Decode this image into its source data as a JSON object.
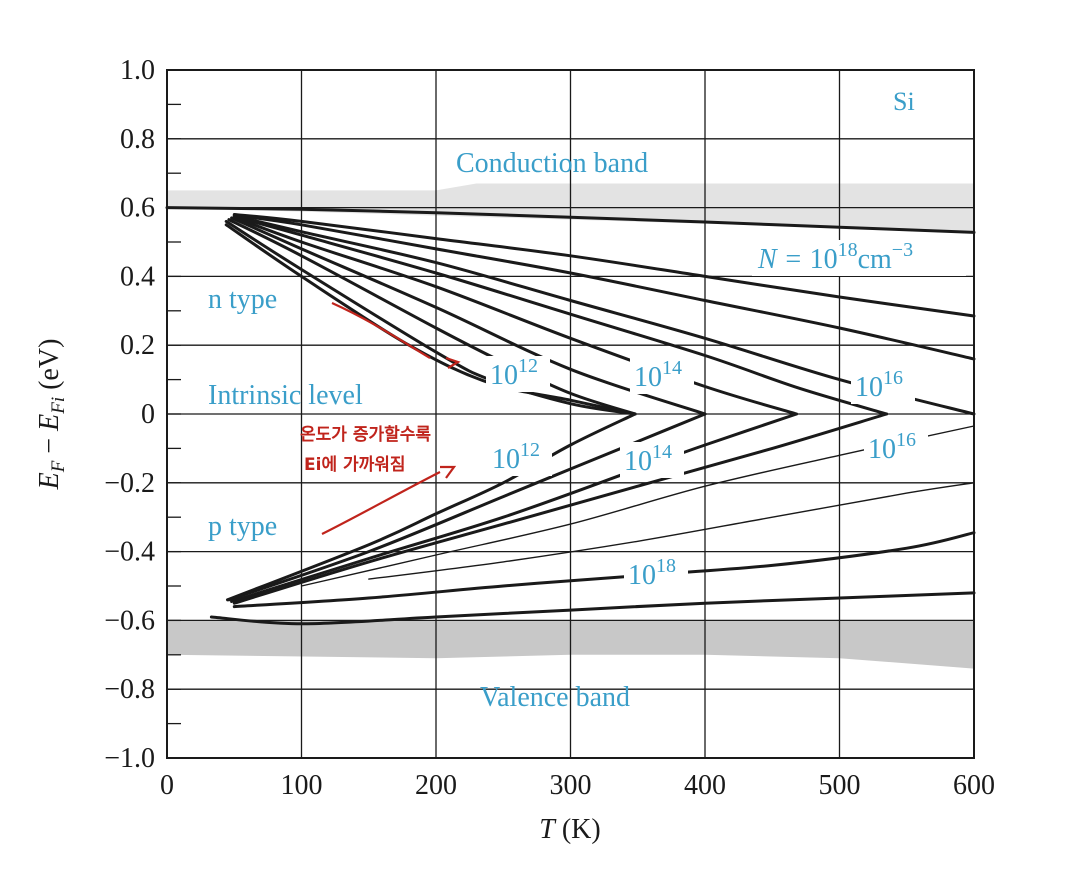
{
  "chart_data": {
    "type": "line",
    "title": "",
    "xlabel": "T (K)",
    "ylabel": "E_F − E_Fi (eV)",
    "xlim": [
      0,
      600
    ],
    "ylim": [
      -1.0,
      1.0
    ],
    "x_ticks": [
      "0",
      "100",
      "200",
      "300",
      "400",
      "500",
      "600"
    ],
    "y_ticks": [
      "1.0",
      "0.8",
      "0.6",
      "0.4",
      "0.2",
      "0",
      "−0.2",
      "−0.4",
      "−0.6",
      "−0.8",
      "−1.0"
    ],
    "grid": true,
    "material": "Si",
    "region_labels": {
      "conduction": "Conduction band",
      "valence": "Valence band",
      "n_type": "n type",
      "p_type": "p type",
      "intrinsic": "Intrinsic level"
    },
    "conduction_band": {
      "top": [
        [
          0,
          0.65
        ],
        [
          200,
          0.65
        ],
        [
          230,
          0.67
        ],
        [
          400,
          0.67
        ],
        [
          600,
          0.67
        ]
      ],
      "bottom": [
        [
          0,
          0.6
        ],
        [
          600,
          0.53
        ]
      ]
    },
    "valence_band": {
      "top": [
        [
          0,
          -0.6
        ],
        [
          600,
          -0.6
        ]
      ],
      "bottom": [
        [
          0,
          -0.7
        ],
        [
          200,
          -0.71
        ],
        [
          300,
          -0.7
        ],
        [
          400,
          -0.7
        ],
        [
          500,
          -0.71
        ],
        [
          600,
          -0.74
        ]
      ]
    },
    "curve_labels": {
      "n_top": "N = 10^18 cm^-3",
      "n12": "10^12",
      "n14": "10^14",
      "n16": "10^16",
      "p12": "10^12",
      "p14": "10^14",
      "p16": "10^16",
      "p18": "10^18"
    },
    "series": [
      {
        "name": "n 10^18",
        "type": "n",
        "points": [
          [
            0,
            0.6
          ],
          [
            100,
            0.595
          ],
          [
            200,
            0.585
          ],
          [
            300,
            0.572
          ],
          [
            400,
            0.558
          ],
          [
            500,
            0.543
          ],
          [
            600,
            0.528
          ]
        ]
      },
      {
        "name": "n 10^17",
        "type": "n",
        "points": [
          [
            50,
            0.58
          ],
          [
            100,
            0.56
          ],
          [
            200,
            0.51
          ],
          [
            300,
            0.46
          ],
          [
            400,
            0.4
          ],
          [
            500,
            0.34
          ],
          [
            600,
            0.285
          ]
        ]
      },
      {
        "name": "n 10^16",
        "type": "n",
        "points": [
          [
            50,
            0.578
          ],
          [
            100,
            0.55
          ],
          [
            200,
            0.48
          ],
          [
            300,
            0.41
          ],
          [
            400,
            0.33
          ],
          [
            500,
            0.25
          ],
          [
            600,
            0.16
          ]
        ]
      },
      {
        "name": "n 10^15.5",
        "type": "n",
        "points": [
          [
            50,
            0.576
          ],
          [
            100,
            0.53
          ],
          [
            200,
            0.44
          ],
          [
            300,
            0.33
          ],
          [
            400,
            0.22
          ],
          [
            500,
            0.1
          ],
          [
            600,
            0.0
          ]
        ]
      },
      {
        "name": "n 10^15",
        "type": "n",
        "points": [
          [
            50,
            0.574
          ],
          [
            100,
            0.52
          ],
          [
            200,
            0.41
          ],
          [
            300,
            0.29
          ],
          [
            400,
            0.17
          ],
          [
            470,
            0.075
          ],
          [
            535,
            0.0
          ]
        ]
      },
      {
        "name": "n 10^14.5",
        "type": "n",
        "points": [
          [
            50,
            0.572
          ],
          [
            100,
            0.5
          ],
          [
            200,
            0.37
          ],
          [
            300,
            0.22
          ],
          [
            400,
            0.08
          ],
          [
            468,
            0.0
          ]
        ]
      },
      {
        "name": "n 10^14",
        "type": "n",
        "points": [
          [
            48,
            0.57
          ],
          [
            100,
            0.48
          ],
          [
            200,
            0.31
          ],
          [
            300,
            0.13
          ],
          [
            400,
            0.0
          ]
        ]
      },
      {
        "name": "n 10^13",
        "type": "n",
        "points": [
          [
            46,
            0.565
          ],
          [
            100,
            0.46
          ],
          [
            200,
            0.25
          ],
          [
            250,
            0.15
          ],
          [
            300,
            0.06
          ],
          [
            348,
            0.0
          ]
        ]
      },
      {
        "name": "n 10^12",
        "type": "n",
        "points": [
          [
            44,
            0.56
          ],
          [
            100,
            0.42
          ],
          [
            200,
            0.18
          ],
          [
            240,
            0.1
          ],
          [
            300,
            0.03
          ],
          [
            348,
            0.0
          ]
        ]
      },
      {
        "name": "n 10^11",
        "type": "n",
        "points": [
          [
            44,
            0.55
          ],
          [
            100,
            0.4
          ],
          [
            180,
            0.2
          ],
          [
            240,
            0.09
          ],
          [
            300,
            0.04
          ],
          [
            348,
            0.0
          ]
        ]
      },
      {
        "name": "p 10^12",
        "type": "p",
        "points": [
          [
            45,
            -0.54
          ],
          [
            150,
            -0.38
          ],
          [
            200,
            -0.29
          ],
          [
            250,
            -0.2
          ],
          [
            300,
            -0.09
          ],
          [
            348,
            0.0
          ]
        ]
      },
      {
        "name": "p 10^13",
        "type": "p",
        "points": [
          [
            46,
            -0.54
          ],
          [
            150,
            -0.4
          ],
          [
            250,
            -0.24
          ],
          [
            300,
            -0.16
          ],
          [
            350,
            -0.08
          ],
          [
            400,
            0.0
          ]
        ]
      },
      {
        "name": "p 10^14",
        "type": "p",
        "points": [
          [
            48,
            -0.545
          ],
          [
            150,
            -0.42
          ],
          [
            250,
            -0.3
          ],
          [
            350,
            -0.16
          ],
          [
            400,
            -0.09
          ],
          [
            468,
            0.0
          ]
        ]
      },
      {
        "name": "p 10^15",
        "type": "p",
        "points": [
          [
            50,
            -0.55
          ],
          [
            150,
            -0.43
          ],
          [
            250,
            -0.32
          ],
          [
            350,
            -0.21
          ],
          [
            450,
            -0.1
          ],
          [
            535,
            0.0
          ]
        ]
      },
      {
        "name": "p 10^16",
        "type": "p",
        "points": [
          [
            100,
            -0.5
          ],
          [
            200,
            -0.41
          ],
          [
            300,
            -0.32
          ],
          [
            400,
            -0.21
          ],
          [
            500,
            -0.12
          ],
          [
            600,
            -0.035
          ]
        ]
      },
      {
        "name": "p 10^17",
        "type": "p",
        "points": [
          [
            150,
            -0.48
          ],
          [
            250,
            -0.43
          ],
          [
            350,
            -0.37
          ],
          [
            450,
            -0.3
          ],
          [
            550,
            -0.23
          ],
          [
            600,
            -0.2
          ]
        ]
      },
      {
        "name": "p 10^18",
        "type": "p",
        "points": [
          [
            50,
            -0.56
          ],
          [
            150,
            -0.535
          ],
          [
            250,
            -0.5
          ],
          [
            350,
            -0.47
          ],
          [
            450,
            -0.44
          ],
          [
            550,
            -0.39
          ],
          [
            600,
            -0.345
          ]
        ]
      },
      {
        "name": "p 10^19",
        "type": "p",
        "points": [
          [
            33,
            -0.59
          ],
          [
            100,
            -0.61
          ],
          [
            200,
            -0.59
          ],
          [
            300,
            -0.57
          ],
          [
            400,
            -0.55
          ],
          [
            500,
            -0.535
          ],
          [
            600,
            -0.52
          ]
        ]
      }
    ],
    "annotation": {
      "line1": "온도가 증가할수록",
      "line2": "Ei에 가까워짐",
      "color": "#c0241c"
    },
    "colors": {
      "text": "#3a9ec9",
      "curve": "#1a1a1a",
      "band": "#c8c8c8",
      "annotation": "#c0241c"
    }
  }
}
